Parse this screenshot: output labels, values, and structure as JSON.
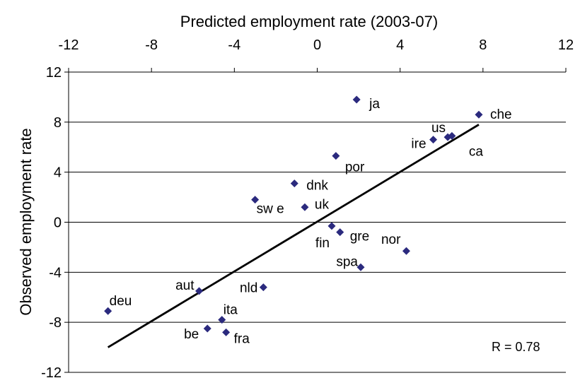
{
  "chart_data": {
    "type": "scatter",
    "title": "",
    "xlabel": "Predicted employment rate (2003-07)",
    "ylabel": "Observed employment rate",
    "xlim": [
      -12,
      12
    ],
    "ylim": [
      -12,
      12
    ],
    "x_ticks": [
      "-12",
      "-8",
      "-4",
      "0",
      "4",
      "8",
      "12"
    ],
    "y_ticks": [
      "12",
      "8",
      "4",
      "0",
      "-4",
      "-8",
      "-12"
    ],
    "x_axis_position": "top",
    "grid": "horizontal",
    "marker": "diamond",
    "points": [
      {
        "label": "deu",
        "x": -10.1,
        "y": -7.1
      },
      {
        "label": "aut",
        "x": -5.7,
        "y": -5.5
      },
      {
        "label": "be",
        "x": -5.3,
        "y": -8.5
      },
      {
        "label": "ita",
        "x": -4.6,
        "y": -7.8
      },
      {
        "label": "fra",
        "x": -4.4,
        "y": -8.8
      },
      {
        "label": "nld",
        "x": -2.6,
        "y": -5.2
      },
      {
        "label": "sw e",
        "x": -3.0,
        "y": 1.8
      },
      {
        "label": "dnk",
        "x": -1.1,
        "y": 3.1
      },
      {
        "label": "uk",
        "x": -0.6,
        "y": 1.2
      },
      {
        "label": "fin",
        "x": 0.7,
        "y": -0.3
      },
      {
        "label": "gre",
        "x": 1.1,
        "y": -0.8
      },
      {
        "label": "por",
        "x": 0.9,
        "y": 5.3
      },
      {
        "label": "ja",
        "x": 1.9,
        "y": 9.8
      },
      {
        "label": "spa",
        "x": 2.1,
        "y": -3.6
      },
      {
        "label": "nor",
        "x": 4.3,
        "y": -2.3
      },
      {
        "label": "ire",
        "x": 5.6,
        "y": 6.6
      },
      {
        "label": "us",
        "x": 6.3,
        "y": 6.8
      },
      {
        "label": "ca",
        "x": 6.5,
        "y": 6.9
      },
      {
        "label": "che",
        "x": 7.8,
        "y": 8.6
      }
    ],
    "trendline": {
      "x": [
        -10.1,
        7.8
      ],
      "y": [
        -10.0,
        7.8
      ]
    },
    "annotation": "R = 0.78",
    "colors": {
      "marker": "#2B2A7E",
      "line": "#000000",
      "grid": "#000000"
    }
  }
}
